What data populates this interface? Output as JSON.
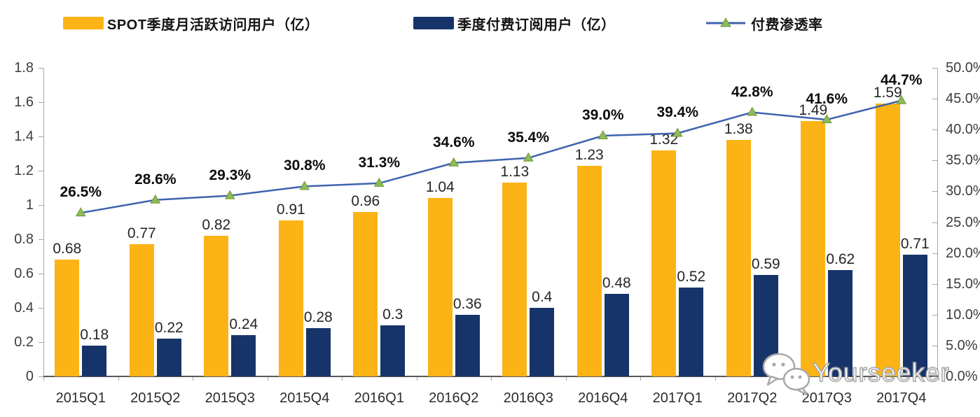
{
  "legend": {
    "items": [
      {
        "label": "SPOT季度月活跃访问用户（亿）",
        "swatch": "bar",
        "color": "#FCB315"
      },
      {
        "label": "季度付费订阅用户（亿）",
        "swatch": "bar",
        "color": "#163469"
      },
      {
        "label": "付费渗透率",
        "swatch": "line-triangle",
        "color": "#3F63AE",
        "marker_color": "#8FBA55"
      }
    ]
  },
  "watermark": {
    "text": "Yourseeker",
    "icon": "wechat-chat-bubbles-icon"
  },
  "chart_data": {
    "type": "combo",
    "categories": [
      "2015Q1",
      "2015Q2",
      "2015Q3",
      "2015Q4",
      "2016Q1",
      "2016Q2",
      "2016Q3",
      "2016Q4",
      "2017Q1",
      "2017Q2",
      "2017Q3",
      "2017Q4"
    ],
    "series": [
      {
        "name": "SPOT季度月活跃访问用户（亿）",
        "type": "bar",
        "axis": "left",
        "color": "#FCB315",
        "values": [
          0.68,
          0.77,
          0.82,
          0.91,
          0.96,
          1.04,
          1.13,
          1.23,
          1.32,
          1.38,
          1.49,
          1.59
        ],
        "labels": [
          "0.68",
          "0.77",
          "0.82",
          "0.91",
          "0.96",
          "1.04",
          "1.13",
          "1.23",
          "1.32",
          "1.38",
          "1.49",
          "1.59"
        ]
      },
      {
        "name": "季度付费订阅用户（亿）",
        "type": "bar",
        "axis": "left",
        "color": "#163469",
        "values": [
          0.18,
          0.22,
          0.24,
          0.28,
          0.3,
          0.36,
          0.4,
          0.48,
          0.52,
          0.59,
          0.62,
          0.71
        ],
        "labels": [
          "0.18",
          "0.22",
          "0.24",
          "0.28",
          "0.3",
          "0.36",
          "0.4",
          "0.48",
          "0.52",
          "0.59",
          "0.62",
          "0.71"
        ]
      },
      {
        "name": "付费渗透率",
        "type": "line",
        "axis": "right",
        "color": "#3F63AE",
        "marker": "triangle",
        "marker_color": "#8FBA55",
        "marker_edge_color": "#6E9A3D",
        "values": [
          26.5,
          28.6,
          29.3,
          30.8,
          31.3,
          34.6,
          35.4,
          39.0,
          39.4,
          42.8,
          41.6,
          44.7
        ],
        "labels": [
          "26.5%",
          "28.6%",
          "29.3%",
          "30.8%",
          "31.3%",
          "34.6%",
          "35.4%",
          "39.0%",
          "39.4%",
          "42.8%",
          "41.6%",
          "44.7%"
        ]
      }
    ],
    "left_axis": {
      "min": 0,
      "max": 1.8,
      "step": 0.2,
      "tick_labels": [
        "0",
        "0.2",
        "0.4",
        "0.6",
        "0.8",
        "1",
        "1.2",
        "1.4",
        "1.6",
        "1.8"
      ]
    },
    "right_axis": {
      "min": 0,
      "max": 50,
      "step": 5,
      "tick_labels": [
        "0.0%",
        "5.0%",
        "10.0%",
        "15.0%",
        "20.0%",
        "25.0%",
        "30.0%",
        "35.0%",
        "40.0%",
        "45.0%",
        "50.0%"
      ]
    },
    "legend_position": "top",
    "grid": false
  }
}
